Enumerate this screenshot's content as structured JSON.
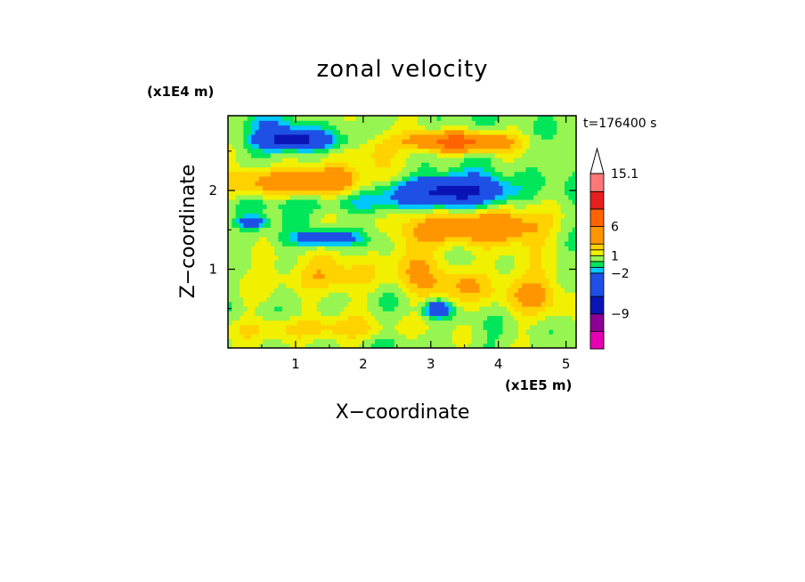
{
  "chart_data": {
    "type": "heatmap",
    "title": "zonal velocity",
    "xlabel": "X−coordinate",
    "ylabel": "Z−coordinate",
    "x_unit": "(x1E5 m)",
    "y_unit": "(x1E4 m)",
    "time_label": "t=176400 s",
    "xlim": [
      0,
      5.15
    ],
    "ylim": [
      0,
      2.95
    ],
    "x_ticks": [
      1,
      2,
      3,
      4,
      5
    ],
    "y_ticks": [
      1,
      2
    ],
    "x_tick_labels": [
      "1",
      "2",
      "3",
      "4",
      "5"
    ],
    "y_tick_labels": [
      "1",
      "2"
    ],
    "colorbar": {
      "levels": [
        -15,
        -12,
        -9,
        -6,
        -2,
        -1,
        0,
        1,
        2,
        3,
        6,
        9,
        12,
        15.1
      ],
      "tick_labels": [
        "15.1",
        "6",
        "1",
        "−2",
        "−9"
      ],
      "tick_values": [
        15.1,
        6,
        1,
        -2,
        -9
      ],
      "colors": [
        "#e600b4",
        "#b4008c",
        "#8c0096",
        "#0a14b4",
        "#1e50e6",
        "#00c8ff",
        "#00e65a",
        "#96f550",
        "#f0f000",
        "#ffd200",
        "#ff9600",
        "#ff6400",
        "#e61e1e",
        "#ff7878",
        "#ffb4b4"
      ],
      "extend": "max"
    },
    "features": [
      {
        "x": 0.95,
        "z": 2.65,
        "value": -8,
        "rx": 0.55,
        "rz": 0.12
      },
      {
        "x": 3.3,
        "z": 2.0,
        "value": -8,
        "rx": 0.8,
        "rz": 0.18
      },
      {
        "x": 1.1,
        "z": 2.12,
        "value": 5,
        "rx": 1.0,
        "rz": 0.18
      },
      {
        "x": 3.4,
        "z": 2.62,
        "value": 7,
        "rx": 0.7,
        "rz": 0.12
      },
      {
        "x": 1.45,
        "z": 1.4,
        "value": -6,
        "rx": 0.4,
        "rz": 0.08
      },
      {
        "x": 0.35,
        "z": 1.6,
        "value": -5,
        "rx": 0.18,
        "rz": 0.07
      },
      {
        "x": 3.8,
        "z": 1.55,
        "value": 5,
        "rx": 0.9,
        "rz": 0.22
      },
      {
        "x": 3.1,
        "z": 0.5,
        "value": -6,
        "rx": 0.18,
        "rz": 0.1
      },
      {
        "x": 2.7,
        "z": 1.15,
        "value": 2.5,
        "rx": 0.3,
        "rz": 0.45
      },
      {
        "x": 3.4,
        "z": 0.8,
        "value": 2.5,
        "rx": 0.5,
        "rz": 0.25
      },
      {
        "x": 1.4,
        "z": 0.9,
        "value": 2.5,
        "rx": 0.9,
        "rz": 0.2
      },
      {
        "x": 4.5,
        "z": 0.7,
        "value": 2.5,
        "rx": 0.6,
        "rz": 0.3
      },
      {
        "x": 1.5,
        "z": 1.85,
        "value": -1.5,
        "rx": 1.4,
        "rz": 0.12
      },
      {
        "x": 0.6,
        "z": 2.85,
        "value": -1.5,
        "rx": 0.5,
        "rz": 0.1
      },
      {
        "x": 1.2,
        "z": 1.15,
        "value": 0.5,
        "rx": 1.2,
        "rz": 0.12
      },
      {
        "x": 4.2,
        "z": 1.1,
        "value": 0.5,
        "rx": 0.9,
        "rz": 0.2
      },
      {
        "x": 1.3,
        "z": 0.25,
        "value": 2.5,
        "rx": 1.1,
        "rz": 0.15
      },
      {
        "x": 2.2,
        "z": 2.5,
        "value": 2.5,
        "rx": 0.3,
        "rz": 0.25
      }
    ],
    "grid": false,
    "legend": "right-colorbar"
  }
}
